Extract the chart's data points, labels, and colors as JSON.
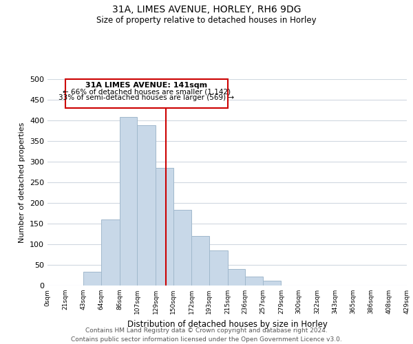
{
  "title": "31A, LIMES AVENUE, HORLEY, RH6 9DG",
  "subtitle": "Size of property relative to detached houses in Horley",
  "xlabel": "Distribution of detached houses by size in Horley",
  "ylabel": "Number of detached properties",
  "bar_color": "#c8d8e8",
  "bar_edge_color": "#a0b8cc",
  "background_color": "#ffffff",
  "grid_color": "#d0d8e0",
  "annotation_box_color": "#cc0000",
  "bin_edges": [
    0,
    21,
    43,
    64,
    86,
    107,
    129,
    150,
    172,
    193,
    215,
    236,
    257,
    279,
    300,
    322,
    343,
    365,
    386,
    408,
    429
  ],
  "bin_labels": [
    "0sqm",
    "21sqm",
    "43sqm",
    "64sqm",
    "86sqm",
    "107sqm",
    "129sqm",
    "150sqm",
    "172sqm",
    "193sqm",
    "215sqm",
    "236sqm",
    "257sqm",
    "279sqm",
    "300sqm",
    "322sqm",
    "343sqm",
    "365sqm",
    "386sqm",
    "408sqm",
    "429sqm"
  ],
  "bar_heights": [
    0,
    0,
    33,
    160,
    408,
    388,
    285,
    184,
    120,
    85,
    40,
    22,
    12,
    0,
    0,
    0,
    0,
    0,
    0,
    0
  ],
  "property_size": 141,
  "property_label": "31A LIMES AVENUE: 141sqm",
  "pct_smaller": 66,
  "n_smaller": 1142,
  "pct_larger_semi": 33,
  "n_larger_semi": 569,
  "ylim": [
    0,
    500
  ],
  "yticks": [
    0,
    50,
    100,
    150,
    200,
    250,
    300,
    350,
    400,
    450,
    500
  ],
  "footer_line1": "Contains HM Land Registry data © Crown copyright and database right 2024.",
  "footer_line2": "Contains public sector information licensed under the Open Government Licence v3.0."
}
